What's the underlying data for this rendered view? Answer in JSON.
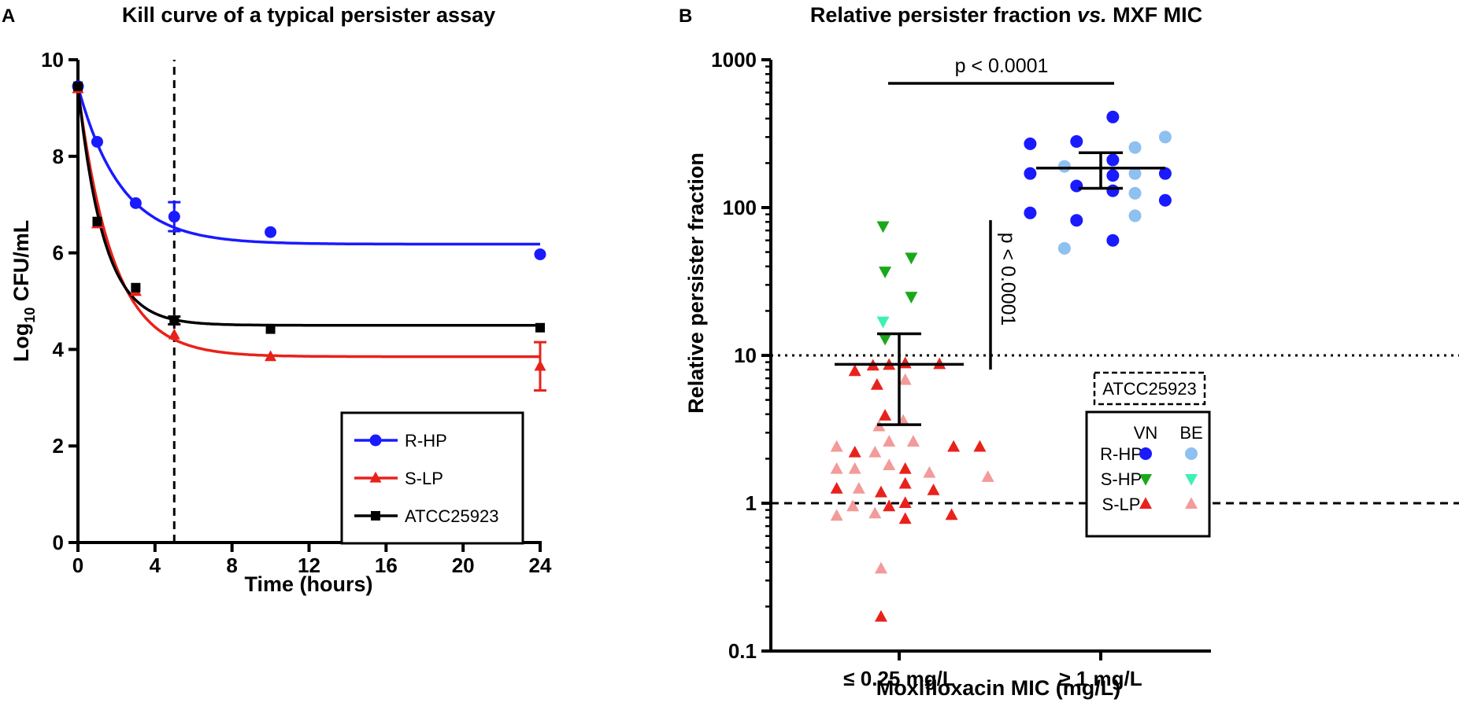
{
  "chart_data": [
    {
      "panel": "A",
      "type": "line",
      "title": "Kill curve of a typical persister assay",
      "xlabel": "Time (hours)",
      "ylabel_main": "Log",
      "ylabel_sub": "10",
      "ylabel_unit": " CFU/mL",
      "xlim": [
        0,
        24
      ],
      "ylim": [
        0,
        10
      ],
      "xticks": [
        "0",
        "4",
        "8",
        "12",
        "16",
        "20",
        "24"
      ],
      "yticks": [
        "0",
        "2",
        "4",
        "6",
        "8",
        "10"
      ],
      "vline_x": 5,
      "series": [
        {
          "name": "R-HP",
          "color": "#1a1aff",
          "marker": "circle",
          "x": [
            0,
            1,
            3,
            5,
            10,
            24
          ],
          "y": [
            9.45,
            8.3,
            7.03,
            6.75,
            6.43,
            5.97
          ],
          "err": [
            0,
            0,
            0,
            0.3,
            0,
            0
          ],
          "fit": {
            "top": 9.45,
            "plateau": 6.18,
            "k": 0.45
          }
        },
        {
          "name": "S-LP",
          "color": "#e8221b",
          "marker": "triangle",
          "x": [
            0,
            1,
            3,
            5,
            10,
            24
          ],
          "y": [
            9.4,
            6.6,
            5.2,
            4.3,
            3.85,
            3.65
          ],
          "err": [
            0,
            0,
            0,
            0,
            0,
            0.5
          ],
          "fit": {
            "top": 9.4,
            "plateau": 3.85,
            "k": 0.55
          }
        },
        {
          "name": "ATCC25923",
          "color": "#000000",
          "marker": "square",
          "x": [
            0,
            1,
            3,
            5,
            10,
            24
          ],
          "y": [
            9.45,
            6.65,
            5.28,
            4.6,
            4.42,
            4.45
          ],
          "err": [
            0,
            0,
            0,
            0.08,
            0,
            0
          ],
          "fit": {
            "top": 9.45,
            "plateau": 4.5,
            "k": 0.75
          }
        }
      ]
    },
    {
      "panel": "B",
      "type": "scatter",
      "title_part1": "Relative persister fraction ",
      "title_part2": "vs.",
      "title_part3": " MXF MIC",
      "xlabel": "Moxifloxacin MIC (mg/L)",
      "ylabel": "Relative persister fraction",
      "yscale": "log",
      "ylim": [
        0.1,
        1000
      ],
      "yticks": [
        "0.1",
        "1",
        "10",
        "100",
        "1000"
      ],
      "categories": [
        "≤ 0.25 mg/L",
        "≥ 1 mg/L"
      ],
      "hline_dashed": 1,
      "hline_dotted": 10,
      "reference_label": "ATCC25923",
      "p_value_horizontal": "p < 0.0001",
      "p_value_vertical": "p < 0.0001",
      "groups": [
        {
          "category": 0,
          "mean": 8.7,
          "ci_low": 3.4,
          "ci_high": 14,
          "points": [
            {
              "type": "S-HP",
              "src": "VN",
              "dx": -0.08,
              "y": 75
            },
            {
              "type": "S-HP",
              "src": "VN",
              "dx": 0.06,
              "y": 46
            },
            {
              "type": "S-HP",
              "src": "VN",
              "dx": -0.07,
              "y": 37
            },
            {
              "type": "S-HP",
              "src": "VN",
              "dx": 0.06,
              "y": 25
            },
            {
              "type": "S-HP",
              "src": "BE",
              "dx": -0.08,
              "y": 17
            },
            {
              "type": "S-HP",
              "src": "VN",
              "dx": -0.07,
              "y": 13
            },
            {
              "type": "S-LP",
              "src": "VN",
              "dx": -0.22,
              "y": 7.8
            },
            {
              "type": "S-LP",
              "src": "VN",
              "dx": -0.13,
              "y": 8.5
            },
            {
              "type": "S-LP",
              "src": "VN",
              "dx": -0.05,
              "y": 8.6
            },
            {
              "type": "S-LP",
              "src": "VN",
              "dx": 0.03,
              "y": 8.8
            },
            {
              "type": "S-LP",
              "src": "VN",
              "dx": 0.2,
              "y": 8.7
            },
            {
              "type": "S-LP",
              "src": "VN",
              "dx": -0.11,
              "y": 6.3
            },
            {
              "type": "S-LP",
              "src": "BE",
              "dx": 0.03,
              "y": 6.8
            },
            {
              "type": "S-LP",
              "src": "VN",
              "dx": -0.07,
              "y": 3.9
            },
            {
              "type": "S-LP",
              "src": "BE",
              "dx": -0.1,
              "y": 3.3
            },
            {
              "type": "S-LP",
              "src": "BE",
              "dx": 0.02,
              "y": 3.6
            },
            {
              "type": "S-LP",
              "src": "BE",
              "dx": -0.31,
              "y": 2.4
            },
            {
              "type": "S-LP",
              "src": "VN",
              "dx": -0.22,
              "y": 2.2
            },
            {
              "type": "S-LP",
              "src": "BE",
              "dx": -0.12,
              "y": 2.2
            },
            {
              "type": "S-LP",
              "src": "BE",
              "dx": -0.05,
              "y": 2.6
            },
            {
              "type": "S-LP",
              "src": "BE",
              "dx": 0.07,
              "y": 2.6
            },
            {
              "type": "S-LP",
              "src": "VN",
              "dx": 0.27,
              "y": 2.4
            },
            {
              "type": "S-LP",
              "src": "VN",
              "dx": 0.4,
              "y": 2.4
            },
            {
              "type": "S-LP",
              "src": "BE",
              "dx": -0.31,
              "y": 1.7
            },
            {
              "type": "S-LP",
              "src": "BE",
              "dx": -0.22,
              "y": 1.7
            },
            {
              "type": "S-LP",
              "src": "BE",
              "dx": -0.05,
              "y": 1.8
            },
            {
              "type": "S-LP",
              "src": "VN",
              "dx": 0.03,
              "y": 1.7
            },
            {
              "type": "S-LP",
              "src": "BE",
              "dx": 0.15,
              "y": 1.6
            },
            {
              "type": "S-LP",
              "src": "BE",
              "dx": 0.44,
              "y": 1.5
            },
            {
              "type": "S-LP",
              "src": "VN",
              "dx": -0.31,
              "y": 1.25
            },
            {
              "type": "S-LP",
              "src": "BE",
              "dx": -0.2,
              "y": 1.25
            },
            {
              "type": "S-LP",
              "src": "VN",
              "dx": -0.09,
              "y": 1.18
            },
            {
              "type": "S-LP",
              "src": "VN",
              "dx": 0.03,
              "y": 1.35
            },
            {
              "type": "S-LP",
              "src": "VN",
              "dx": 0.17,
              "y": 1.22
            },
            {
              "type": "S-LP",
              "src": "BE",
              "dx": -0.23,
              "y": 0.95
            },
            {
              "type": "S-LP",
              "src": "VN",
              "dx": -0.05,
              "y": 0.95
            },
            {
              "type": "S-LP",
              "src": "BE",
              "dx": -0.31,
              "y": 0.82
            },
            {
              "type": "S-LP",
              "src": "BE",
              "dx": -0.12,
              "y": 0.85
            },
            {
              "type": "S-LP",
              "src": "VN",
              "dx": 0.03,
              "y": 1.0
            },
            {
              "type": "S-LP",
              "src": "VN",
              "dx": 0.03,
              "y": 0.78
            },
            {
              "type": "S-LP",
              "src": "VN",
              "dx": 0.26,
              "y": 0.83
            },
            {
              "type": "S-LP",
              "src": "BE",
              "dx": -0.09,
              "y": 0.36
            },
            {
              "type": "S-LP",
              "src": "VN",
              "dx": -0.09,
              "y": 0.17
            }
          ]
        },
        {
          "category": 1,
          "mean": 185,
          "ci_low": 135,
          "ci_high": 235,
          "points": [
            {
              "type": "R-HP",
              "src": "VN",
              "dx": 0.06,
              "y": 410
            },
            {
              "type": "R-HP",
              "src": "BE",
              "dx": 0.32,
              "y": 300
            },
            {
              "type": "R-HP",
              "src": "VN",
              "dx": -0.12,
              "y": 280
            },
            {
              "type": "R-HP",
              "src": "VN",
              "dx": -0.35,
              "y": 270
            },
            {
              "type": "R-HP",
              "src": "BE",
              "dx": 0.17,
              "y": 255
            },
            {
              "type": "R-HP",
              "src": "VN",
              "dx": 0.06,
              "y": 210
            },
            {
              "type": "R-HP",
              "src": "BE",
              "dx": -0.18,
              "y": 190
            },
            {
              "type": "R-HP",
              "src": "VN",
              "dx": -0.35,
              "y": 170
            },
            {
              "type": "R-HP",
              "src": "VN",
              "dx": 0.06,
              "y": 165
            },
            {
              "type": "R-HP",
              "src": "BE",
              "dx": 0.17,
              "y": 170
            },
            {
              "type": "R-HP",
              "src": "VN",
              "dx": 0.32,
              "y": 170
            },
            {
              "type": "R-HP",
              "src": "VN",
              "dx": -0.12,
              "y": 140
            },
            {
              "type": "R-HP",
              "src": "VN",
              "dx": 0.06,
              "y": 130
            },
            {
              "type": "R-HP",
              "src": "BE",
              "dx": 0.17,
              "y": 125
            },
            {
              "type": "R-HP",
              "src": "VN",
              "dx": 0.32,
              "y": 112
            },
            {
              "type": "R-HP",
              "src": "VN",
              "dx": -0.35,
              "y": 92
            },
            {
              "type": "R-HP",
              "src": "VN",
              "dx": -0.12,
              "y": 82
            },
            {
              "type": "R-HP",
              "src": "BE",
              "dx": 0.17,
              "y": 88
            },
            {
              "type": "R-HP",
              "src": "VN",
              "dx": 0.06,
              "y": 60
            },
            {
              "type": "R-HP",
              "src": "BE",
              "dx": -0.18,
              "y": 53
            }
          ]
        }
      ],
      "legend": {
        "col_labels": [
          "VN",
          "BE"
        ],
        "rows": [
          {
            "label": "R-HP",
            "marker": "circle",
            "vn": "#1a1aff",
            "be": "#8ec0f0"
          },
          {
            "label": "S-HP",
            "marker": "tri-down",
            "vn": "#1aa81a",
            "be": "#3ef0b4"
          },
          {
            "label": "S-LP",
            "marker": "triangle",
            "vn": "#e8221b",
            "be": "#f39a9a"
          }
        ]
      }
    }
  ],
  "panel_labels": {
    "a": "A",
    "b": "B"
  }
}
